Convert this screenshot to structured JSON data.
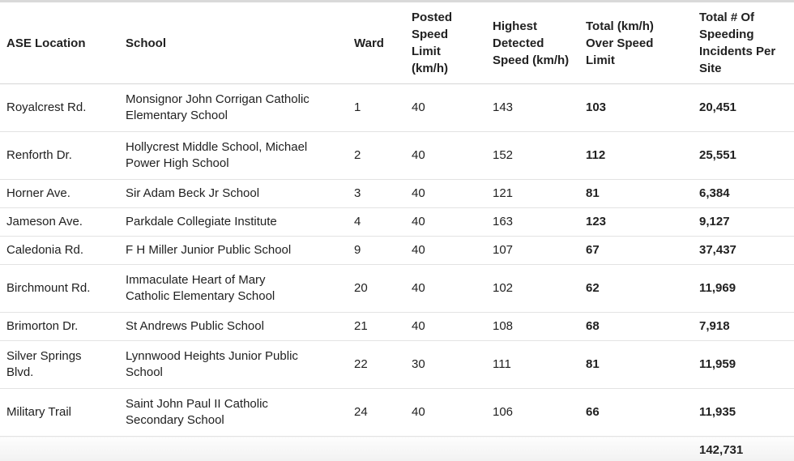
{
  "chart_data": {
    "type": "table",
    "columns": [
      "ASE Location",
      "School",
      "Ward",
      "Posted Speed Limit (km/h)",
      "Highest Detected Speed (km/h)",
      "Total (km/h) Over Speed Limit",
      "Total # Of Speeding Incidents Per Site"
    ],
    "header": {
      "location": "ASE Location",
      "school": "School",
      "ward": "Ward",
      "posted": "Posted\nSpeed\nLimit\n(km/h)",
      "highest": "Highest\nDetected\nSpeed (km/h)",
      "over": "Total (km/h)\nOver Speed\nLimit",
      "incidents": "Total # Of\nSpeeding\nIncidents Per\nSite"
    },
    "rows": [
      {
        "location": "Royalcrest Rd.",
        "school": "Monsignor John Corrigan Catholic\nElementary School",
        "ward": "1",
        "posted": "40",
        "highest": "143",
        "over": "103",
        "incidents": "20,451"
      },
      {
        "location": "Renforth Dr.",
        "school": "Hollycrest Middle School, Michael\nPower High School",
        "ward": "2",
        "posted": "40",
        "highest": "152",
        "over": "112",
        "incidents": "25,551"
      },
      {
        "location": "Horner Ave.",
        "school": "Sir Adam Beck Jr School",
        "ward": "3",
        "posted": "40",
        "highest": "121",
        "over": "81",
        "incidents": "6,384"
      },
      {
        "location": "Jameson Ave.",
        "school": "Parkdale Collegiate Institute",
        "ward": "4",
        "posted": "40",
        "highest": "163",
        "over": "123",
        "incidents": "9,127"
      },
      {
        "location": "Caledonia Rd.",
        "school": "F H Miller Junior Public School",
        "ward": "9",
        "posted": "40",
        "highest": "107",
        "over": "67",
        "incidents": "37,437"
      },
      {
        "location": "Birchmount Rd.",
        "school": "Immaculate Heart of Mary\nCatholic Elementary School",
        "ward": "20",
        "posted": "40",
        "highest": "102",
        "over": "62",
        "incidents": "11,969"
      },
      {
        "location": "Brimorton Dr.",
        "school": "St Andrews Public School",
        "ward": "21",
        "posted": "40",
        "highest": "108",
        "over": "68",
        "incidents": "7,918"
      },
      {
        "location": "Silver Springs\nBlvd.",
        "school": "Lynnwood Heights Junior Public\nSchool",
        "ward": "22",
        "posted": "30",
        "highest": "111",
        "over": "81",
        "incidents": "11,959"
      },
      {
        "location": "Military Trail",
        "school": "Saint John Paul II Catholic\nSecondary School",
        "ward": "24",
        "posted": "40",
        "highest": "106",
        "over": "66",
        "incidents": "11,935"
      }
    ],
    "footer": {
      "total_incidents": "142,731"
    }
  },
  "colors": {
    "text": "#212121",
    "header_border": "#d6d6d6",
    "row_divider": "#e3e3e3",
    "top_bar": "#d9d9d9",
    "bottom_bar": "#e4e4e4",
    "footer_bg": "#f0f0f0"
  }
}
